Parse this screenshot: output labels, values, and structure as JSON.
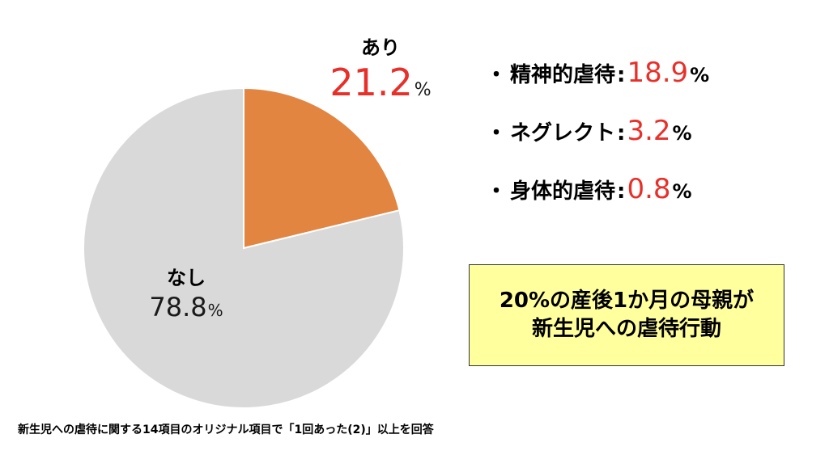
{
  "chart_data": {
    "type": "pie",
    "slices": [
      {
        "label": "あり",
        "value": 21.2,
        "color": "#e28541"
      },
      {
        "label": "なし",
        "value": 78.8,
        "color": "#d9d9d9"
      }
    ],
    "unit": "%"
  },
  "labels": {
    "yes": {
      "name": "あり",
      "value": "21.2",
      "unit": "%"
    },
    "no": {
      "name": "なし",
      "value": "78.8",
      "unit": "%"
    }
  },
  "breakdown": [
    {
      "bullet": "・",
      "name": "精神的虐待",
      "colon": ":",
      "value": "18.9",
      "unit": "%"
    },
    {
      "bullet": "・",
      "name": "ネグレクト",
      "colon": ":",
      "value": "3.2",
      "unit": "%"
    },
    {
      "bullet": "・",
      "name": "身体的虐待",
      "colon": ":",
      "value": "0.8",
      "unit": "%"
    }
  ],
  "callout": {
    "line1": "20%の産後1か月の母親が",
    "line2": "新生児への虐待行動"
  },
  "footnote": "新生児への虐待に関する14項目のオリジナル項目で「1回あった(2)」以上を回答",
  "colors": {
    "accent_red": "#e8302a",
    "callout_bg": "#ffff9e"
  }
}
